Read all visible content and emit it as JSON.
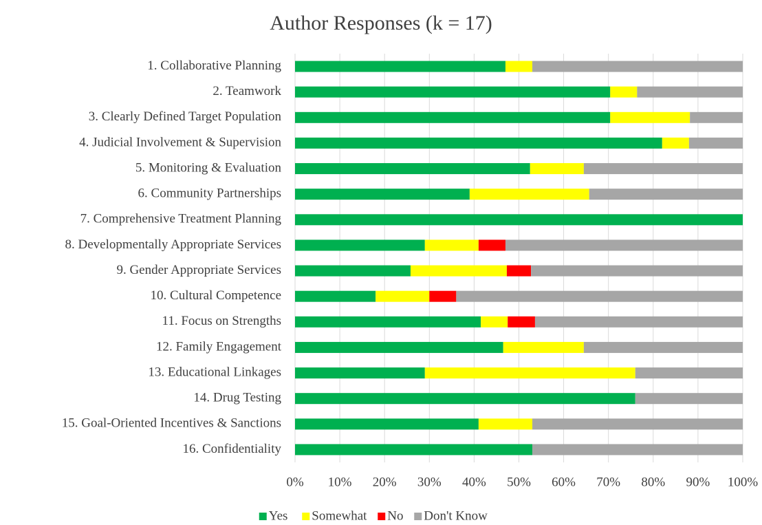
{
  "chart_data": {
    "type": "stacked-barh",
    "title": "Author Responses (k = 17)",
    "categories": [
      "1. Collaborative Planning",
      "2. Teamwork",
      "3. Clearly Defined Target Population",
      "4. Judicial Involvement & Supervision",
      "5. Monitoring & Evaluation",
      "6. Community Partnerships",
      "7. Comprehensive Treatment Planning",
      "8. Developmentally Appropriate Services",
      "9. Gender Appropriate Services",
      "10. Cultural Competence",
      "11. Focus on Strengths",
      "12. Family Engagement",
      "13. Educational Linkages",
      "14. Drug Testing",
      "15. Goal-Oriented Incentives & Sanctions",
      "16. Confidentiality"
    ],
    "series": [
      {
        "name": "Yes",
        "color": "#00b050",
        "values": [
          47,
          70.4,
          70.4,
          82,
          52.5,
          39,
          100,
          29,
          25.8,
          18,
          41.5,
          46.5,
          29,
          76,
          41,
          53
        ]
      },
      {
        "name": "Somewhat",
        "color": "#ffff00",
        "values": [
          6,
          6,
          17.8,
          6,
          12,
          26.7,
          0,
          12,
          21.5,
          12,
          6,
          18,
          47,
          0,
          12,
          0
        ]
      },
      {
        "name": "No",
        "color": "#ff0000",
        "values": [
          0,
          0,
          0,
          0,
          0,
          0,
          0,
          6,
          5.4,
          6,
          6.1,
          0,
          0,
          0,
          0,
          0
        ]
      },
      {
        "name": "Don't Know",
        "color": "#a6a6a6",
        "values": [
          47,
          23.6,
          11.8,
          12,
          35.5,
          34.3,
          0,
          53,
          47.3,
          64,
          46.4,
          35.5,
          24,
          24,
          47,
          47
        ]
      }
    ],
    "xlim": [
      0,
      100
    ],
    "xticks": [
      {
        "value": 0,
        "label": "0%"
      },
      {
        "value": 10,
        "label": "10%"
      },
      {
        "value": 20,
        "label": "20%"
      },
      {
        "value": 30,
        "label": "30%"
      },
      {
        "value": 40,
        "label": "40%"
      },
      {
        "value": 50,
        "label": "50%"
      },
      {
        "value": 60,
        "label": "60%"
      },
      {
        "value": 70,
        "label": "70%"
      },
      {
        "value": 80,
        "label": "80%"
      },
      {
        "value": 90,
        "label": "90%"
      },
      {
        "value": 100,
        "label": "100%"
      }
    ],
    "grid": true,
    "legend": "bottom"
  }
}
